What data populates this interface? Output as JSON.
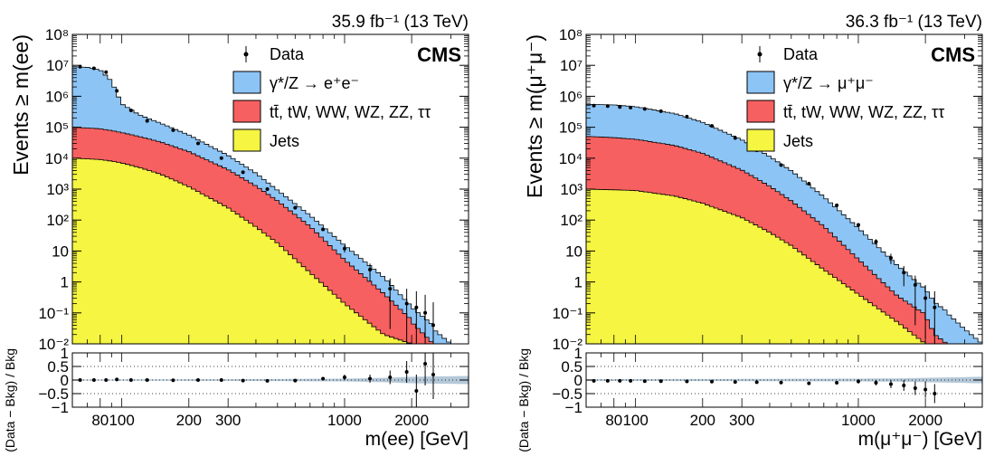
{
  "chart_data": [
    {
      "type": "area",
      "panel": "electron",
      "lumi_label": "35.9 fb⁻¹ (13 TeV)",
      "cms_label": "CMS",
      "ylabel": "Events ≥ m(ee)",
      "xlabel": "m(ee) [GeV]",
      "ratio_ylabel": "(Data − Bkg) / Bkg",
      "x_scale": "log",
      "xlim": [
        60,
        3600
      ],
      "ylim": [
        0.01,
        100000000
      ],
      "ratio_ylim": [
        -1,
        1
      ],
      "x_ticks": [
        80,
        100,
        200,
        300,
        1000,
        2000
      ],
      "x_tick_labels": [
        "80",
        "100",
        "200",
        "300",
        "1000",
        "2000"
      ],
      "y_ticks": [
        0.01,
        0.1,
        1,
        10,
        100,
        1000,
        10000,
        100000,
        1000000,
        10000000,
        100000000
      ],
      "y_tick_labels": [
        "10⁻²",
        "10⁻¹",
        "1",
        "10",
        "10²",
        "10³",
        "10⁴",
        "10⁵",
        "10⁶",
        "10⁷",
        "10⁸"
      ],
      "ratio_ticks": [
        -1,
        -0.5,
        0,
        0.5,
        1
      ],
      "ratio_tick_labels": [
        "−1",
        "−0.5",
        "0",
        "0.5",
        "1"
      ],
      "legend": [
        {
          "label": "Data",
          "kind": "marker"
        },
        {
          "label": "γ*/Z → e⁺e⁻",
          "kind": "fill",
          "color": "#8cc4f5"
        },
        {
          "label": "tt̄, tW, WW, WZ, ZZ, ττ",
          "kind": "fill",
          "color": "#f76060"
        },
        {
          "label": "Jets",
          "kind": "fill",
          "color": "#f5f542"
        }
      ],
      "x": [
        60,
        70,
        80,
        90,
        100,
        120,
        150,
        200,
        300,
        400,
        500,
        700,
        1000,
        1500,
        2000,
        2500,
        3000,
        3600
      ],
      "series": [
        {
          "name": "γ*/Z → e⁺e⁻",
          "values": [
            9000000,
            8500000,
            7000000,
            3000000,
            500000,
            200000,
            100000,
            40000,
            8000,
            2000,
            500,
            80,
            10,
            1,
            0.1,
            0.03,
            0.01,
            0.01
          ]
        },
        {
          "name": "tt̄, tW, WW, WZ, ZZ, ττ",
          "values": [
            90000,
            85000,
            80000,
            70000,
            60000,
            45000,
            30000,
            15000,
            4000,
            1200,
            400,
            60,
            5,
            0.4,
            0.05,
            0.01,
            0.01,
            0.01
          ]
        },
        {
          "name": "Jets",
          "values": [
            10000,
            9500,
            9000,
            8000,
            7000,
            5000,
            3000,
            1200,
            250,
            60,
            18,
            2,
            0.2,
            0.02,
            0.01,
            0.01,
            0.01,
            0.01
          ]
        }
      ],
      "data_points": {
        "x": [
          65,
          75,
          85,
          95,
          110,
          130,
          170,
          220,
          280,
          350,
          450,
          600,
          800,
          1000,
          1300,
          1600,
          1900,
          2100,
          2300,
          2500
        ],
        "y": [
          9000000,
          8000000,
          6000000,
          1500000,
          350000,
          160000,
          80000,
          30000,
          10000,
          3500,
          1000,
          250,
          50,
          12,
          2.5,
          0.6,
          0.2,
          0.15,
          0.1,
          0.04
        ],
        "ratio": [
          0,
          0,
          0,
          0.02,
          0,
          0,
          -0.01,
          0,
          0,
          -0.02,
          -0.03,
          -0.02,
          0.05,
          0.1,
          0.05,
          0.1,
          0.3,
          -0.4,
          0.6,
          0.2
        ],
        "ratio_err": [
          0,
          0,
          0,
          0,
          0,
          0,
          0,
          0,
          0.01,
          0.01,
          0.02,
          0.03,
          0.06,
          0.1,
          0.15,
          0.25,
          0.4,
          0.6,
          0.8,
          0.9
        ]
      },
      "uncertainty_band": {
        "x": [
          60,
          300,
          1000,
          1500,
          2000,
          3600
        ],
        "half_width": [
          0.02,
          0.03,
          0.05,
          0.08,
          0.12,
          0.15
        ]
      }
    },
    {
      "type": "area",
      "panel": "muon",
      "lumi_label": "36.3 fb⁻¹ (13 TeV)",
      "cms_label": "CMS",
      "ylabel": "Events ≥ m(μ⁺μ⁻)",
      "xlabel": "m(μ⁺μ⁻) [GeV]",
      "ratio_ylabel": "(Data − Bkg) / Bkg",
      "x_scale": "log",
      "xlim": [
        60,
        3600
      ],
      "ylim": [
        0.01,
        100000000
      ],
      "ratio_ylim": [
        -1,
        1
      ],
      "x_ticks": [
        80,
        100,
        200,
        300,
        1000,
        2000
      ],
      "x_tick_labels": [
        "80",
        "100",
        "200",
        "300",
        "1000",
        "2000"
      ],
      "y_ticks": [
        0.01,
        0.1,
        1,
        10,
        100,
        1000,
        10000,
        100000,
        1000000,
        10000000,
        100000000
      ],
      "y_tick_labels": [
        "10⁻²",
        "10⁻¹",
        "1",
        "10",
        "10²",
        "10³",
        "10⁴",
        "10⁵",
        "10⁶",
        "10⁷",
        "10⁸"
      ],
      "ratio_ticks": [
        -1,
        -0.5,
        0,
        0.5,
        1
      ],
      "ratio_tick_labels": [
        "−1",
        "−0.5",
        "0",
        "0.5",
        "1"
      ],
      "legend": [
        {
          "label": "Data",
          "kind": "marker"
        },
        {
          "label": "γ*/Z → μ⁺μ⁻",
          "kind": "fill",
          "color": "#8cc4f5"
        },
        {
          "label": "tt̄, tW, WW, WZ, ZZ, ττ",
          "kind": "fill",
          "color": "#f76060"
        },
        {
          "label": "Jets",
          "kind": "fill",
          "color": "#f5f542"
        }
      ],
      "x": [
        60,
        80,
        100,
        150,
        200,
        300,
        400,
        500,
        700,
        1000,
        1500,
        2000,
        2200,
        2500,
        3000,
        3600
      ],
      "series": [
        {
          "name": "γ*/Z → μ⁺μ⁻",
          "values": [
            500000,
            480000,
            420000,
            250000,
            130000,
            35000,
            10000,
            3500,
            500,
            50,
            3,
            0.5,
            0.2,
            0.1,
            0.03,
            0.01
          ]
        },
        {
          "name": "tt̄, tW, WW, WZ, ZZ, ττ",
          "values": [
            50000,
            45000,
            40000,
            25000,
            14000,
            4000,
            1200,
            400,
            60,
            5,
            0.3,
            0.08,
            0.02,
            0.01,
            0.01,
            0.01
          ]
        },
        {
          "name": "Jets",
          "values": [
            1000,
            950,
            900,
            600,
            350,
            120,
            40,
            15,
            2.5,
            0.4,
            0.05,
            0.01,
            0.01,
            0.01,
            0.01,
            0.01
          ]
        }
      ],
      "data_points": {
        "x": [
          65,
          75,
          85,
          95,
          110,
          130,
          170,
          220,
          280,
          350,
          450,
          600,
          800,
          1000,
          1200,
          1400,
          1600,
          1800,
          2000,
          2200
        ],
        "y": [
          500000,
          480000,
          450000,
          430000,
          390000,
          330000,
          220000,
          110000,
          45000,
          18000,
          6000,
          1500,
          300,
          70,
          20,
          6,
          2,
          0.8,
          0.3,
          0.15
        ],
        "ratio": [
          -0.03,
          -0.03,
          -0.03,
          -0.03,
          -0.04,
          -0.04,
          -0.05,
          -0.06,
          -0.07,
          -0.08,
          -0.09,
          -0.12,
          -0.1,
          -0.05,
          -0.1,
          -0.15,
          -0.2,
          -0.3,
          -0.35,
          -0.5
        ],
        "ratio_err": [
          0,
          0,
          0,
          0,
          0,
          0,
          0,
          0,
          0.01,
          0.01,
          0.02,
          0.03,
          0.05,
          0.08,
          0.1,
          0.15,
          0.2,
          0.25,
          0.3,
          0.35
        ]
      },
      "uncertainty_band": {
        "x": [
          60,
          300,
          1000,
          1500,
          2000,
          3600
        ],
        "half_width": [
          0.03,
          0.04,
          0.05,
          0.06,
          0.08,
          0.12
        ]
      }
    }
  ]
}
